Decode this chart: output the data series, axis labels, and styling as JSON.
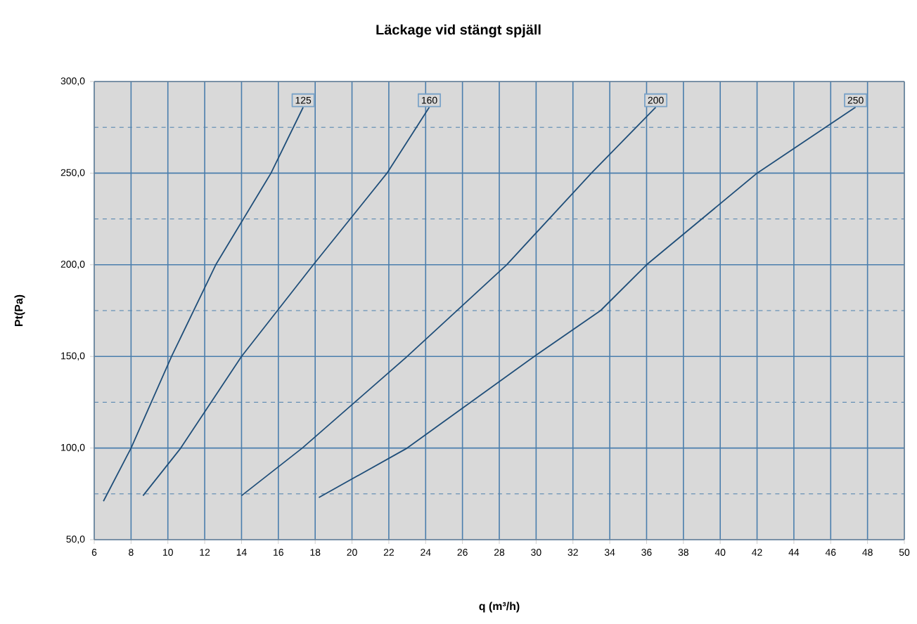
{
  "chart_data": {
    "type": "line",
    "title": "Läckage vid stängt spjäll",
    "xlabel": "q (m³/h)",
    "ylabel": "Pt(Pa)",
    "xlim": [
      6,
      50
    ],
    "xticks": [
      6,
      8,
      10,
      12,
      14,
      16,
      18,
      20,
      22,
      24,
      26,
      28,
      30,
      32,
      34,
      36,
      38,
      40,
      42,
      44,
      46,
      48,
      50
    ],
    "ylim": [
      50,
      300
    ],
    "yticks": [
      {
        "value": 50,
        "label": "50,0"
      },
      {
        "value": 75,
        "label": null
      },
      {
        "value": 100,
        "label": "100,0"
      },
      {
        "value": 125,
        "label": null
      },
      {
        "value": 150,
        "label": "150,0"
      },
      {
        "value": 175,
        "label": null
      },
      {
        "value": 200,
        "label": "200,0"
      },
      {
        "value": 225,
        "label": null
      },
      {
        "value": 250,
        "label": "250,0"
      },
      {
        "value": 275,
        "label": null
      },
      {
        "value": 300,
        "label": "300,0"
      }
    ],
    "grid": true,
    "legend": false,
    "marker": "none",
    "line_style": "solid",
    "series": [
      {
        "name": "125",
        "color": "#1f4e79",
        "x": [
          6.5,
          8.0,
          10.2,
          12.6,
          15.6,
          17.35
        ],
        "values": [
          71,
          100,
          150,
          200,
          250,
          286
        ]
      },
      {
        "name": "160",
        "color": "#1f4e79",
        "x": [
          8.65,
          10.7,
          14.0,
          17.9,
          21.9,
          24.2
        ],
        "values": [
          74,
          100,
          150,
          200,
          250,
          286
        ]
      },
      {
        "name": "200",
        "color": "#1f4e79",
        "x": [
          14.0,
          17.3,
          23.0,
          28.4,
          33.0,
          36.5
        ],
        "values": [
          74,
          100,
          150,
          200,
          250,
          286
        ]
      },
      {
        "name": "250",
        "color": "#1f4e79",
        "x": [
          18.2,
          23.0,
          29.9,
          33.5,
          36.0,
          42.0,
          47.35
        ],
        "values": [
          73,
          100,
          150,
          175,
          200,
          250,
          286
        ]
      }
    ]
  }
}
